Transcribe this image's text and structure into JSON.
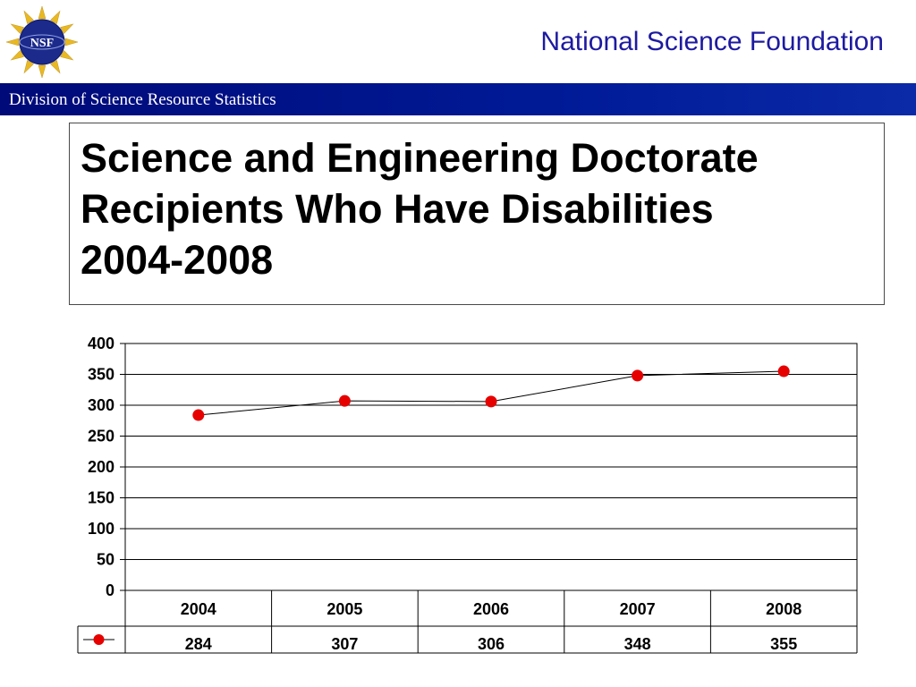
{
  "header": {
    "org_name": "National Science Foundation",
    "logo_text": "NSF",
    "division": "Division of Science Resource Statistics"
  },
  "slide": {
    "title_lines": [
      "Science and Engineering Doctorate",
      "Recipients Who Have Disabilities",
      "2004-2008"
    ]
  },
  "colors": {
    "header_text": "#1d1aa0",
    "banner": "#001a96",
    "marker": "#e60000",
    "line": "#000000"
  },
  "chart_data": {
    "type": "line",
    "categories": [
      "2004",
      "2005",
      "2006",
      "2007",
      "2008"
    ],
    "series": [
      {
        "values": [
          284,
          307,
          306,
          348,
          355
        ],
        "marker": "circle",
        "color": "#e60000"
      }
    ],
    "yticks": [
      "0",
      "50",
      "100",
      "150",
      "200",
      "250",
      "300",
      "350",
      "400"
    ],
    "ylim": [
      0,
      400
    ],
    "grid": "horizontal",
    "data_table": true,
    "legend": "data-table-key"
  }
}
